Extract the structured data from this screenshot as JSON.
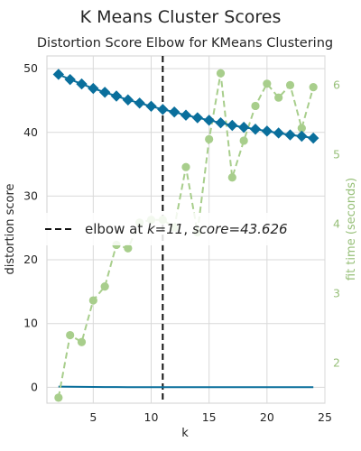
{
  "figure_title": "K Means Cluster Scores",
  "chart_data": {
    "type": "line",
    "title": "Distortion Score Elbow for KMeans Clustering",
    "xlabel": "k",
    "ylabel": "distortion score",
    "y2label": "fit time (seconds)",
    "xlim": [
      1,
      25
    ],
    "ylim": [
      -2.5,
      52
    ],
    "y2lim": [
      1.42,
      6.42
    ],
    "xticks": [
      5,
      10,
      15,
      20,
      25
    ],
    "yticks": [
      0,
      10,
      20,
      30,
      40,
      50
    ],
    "y2ticks": [
      2,
      3,
      4,
      5,
      6
    ],
    "grid": true,
    "legend_position": "center-left",
    "x": [
      2,
      3,
      4,
      5,
      6,
      7,
      8,
      9,
      10,
      11,
      12,
      13,
      14,
      15,
      16,
      17,
      18,
      19,
      20,
      21,
      22,
      23,
      24
    ],
    "series": [
      {
        "name": "distortion score",
        "axis": "left",
        "color": "#0a6f9c",
        "marker": "diamond",
        "values": [
          49.1,
          48.3,
          47.6,
          46.9,
          46.3,
          45.7,
          45.1,
          44.6,
          44.1,
          43.6,
          43.2,
          42.7,
          42.3,
          41.9,
          41.5,
          41.1,
          40.8,
          40.5,
          40.2,
          39.9,
          39.6,
          39.4,
          39.1
        ]
      },
      {
        "name": "fit time (seconds)",
        "axis": "right",
        "color": "#a8ce8c",
        "style": "dashed",
        "marker": "circle",
        "values": [
          1.5,
          2.4,
          2.3,
          2.9,
          3.1,
          3.7,
          3.65,
          4.02,
          4.06,
          4.06,
          3.95,
          4.82,
          3.88,
          5.22,
          6.17,
          4.67,
          5.2,
          5.7,
          6.02,
          5.82,
          6.0,
          5.38,
          5.97
        ]
      },
      {
        "name": "",
        "axis": "left",
        "color": "#0a6f9c",
        "style": "solid",
        "marker": "none",
        "values": [
          0.1,
          0.08,
          0.06,
          0.05,
          0.04,
          0.03,
          0.02,
          0.02,
          0.02,
          0.02,
          0.02,
          0.02,
          0.02,
          0.02,
          0.02,
          0.02,
          0.02,
          0.02,
          0.02,
          0.02,
          0.02,
          0.02,
          0.02
        ]
      }
    ],
    "elbow": {
      "k": 11,
      "legend_label": "elbow at $k=11$, $score=43.626$"
    }
  }
}
